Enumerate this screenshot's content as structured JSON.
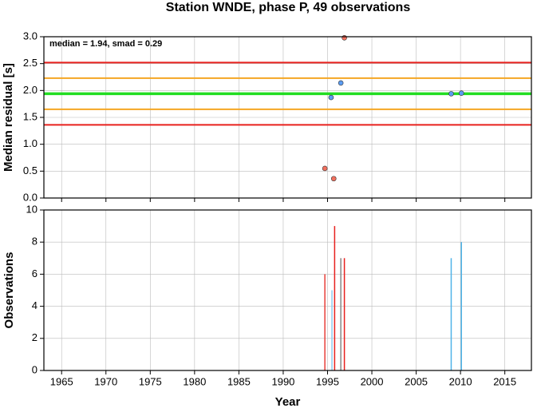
{
  "chart_data": [
    {
      "type": "scatter",
      "title": "Station WNDE, phase P, 49 observations",
      "annotation": "median = 1.94, smad = 0.29",
      "ylabel": "Median residual [s]",
      "xlim": [
        1963,
        2018
      ],
      "xticks": [
        1965,
        1970,
        1975,
        1980,
        1985,
        1990,
        1995,
        2000,
        2005,
        2010,
        2015
      ],
      "ylim": [
        0,
        3
      ],
      "yticks": [
        {
          "value": 0,
          "label": "0.0"
        },
        0.5,
        {
          "value": 1,
          "label": "1.0"
        },
        1.5,
        {
          "value": 2,
          "label": "2.0"
        },
        2.5,
        {
          "value": 3,
          "label": "3.0"
        }
      ],
      "grid": true,
      "hlines": [
        {
          "value": 2.52,
          "color": "#e8201e"
        },
        {
          "value": 2.23,
          "color": "#f5a623"
        },
        {
          "value": 1.94,
          "color": "#22dd22"
        },
        {
          "value": 1.65,
          "color": "#f5a623"
        },
        {
          "value": 1.36,
          "color": "#e8201e"
        }
      ],
      "series": [
        {
          "color": "#f2705e",
          "x": [
            1996.9,
            1994.7,
            1995.7
          ],
          "values": [
            2.98,
            0.55,
            0.36
          ]
        },
        {
          "color": "#5b9cf2",
          "x": [
            1996.5,
            1995.4,
            2008.95,
            2010.1
          ],
          "values": [
            2.14,
            1.87,
            1.94,
            1.95
          ]
        }
      ]
    },
    {
      "type": "bar",
      "ylabel": "Observations",
      "xlabel": "Year",
      "xlim": [
        1963,
        2018
      ],
      "xticks": [
        1965,
        1970,
        1975,
        1980,
        1985,
        1990,
        1995,
        2000,
        2005,
        2010,
        2015
      ],
      "ylim": [
        0,
        10
      ],
      "yticks": [
        0,
        2,
        4,
        6,
        8,
        10
      ],
      "grid": true,
      "x": [
        1994.7,
        1995.5,
        1995.8,
        1996.5,
        1996.9,
        2008.95,
        2010.1
      ],
      "values": [
        6,
        5,
        9,
        7,
        7,
        7,
        8
      ],
      "colors": [
        "#e8403a",
        "#8ecbef",
        "#e8201e",
        "#888888",
        "#e8201e",
        "#4fb3e8",
        "#4fb3e8"
      ]
    }
  ]
}
